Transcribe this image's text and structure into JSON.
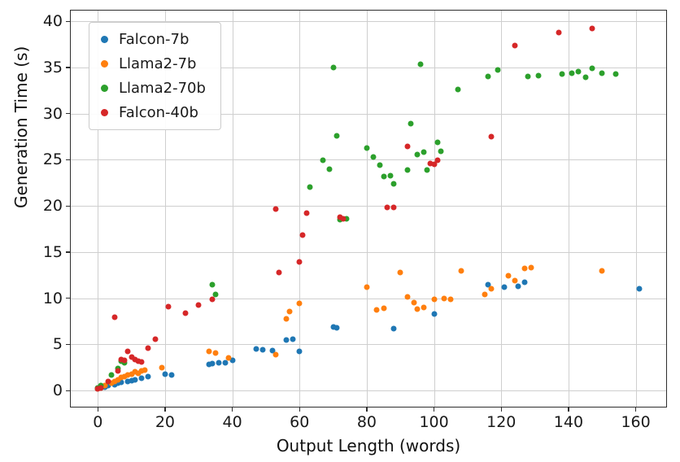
{
  "axes": {
    "xlabel": "Output Length (words)",
    "ylabel": "Generation Time (s)"
  },
  "chart_data": {
    "type": "scatter",
    "title": "",
    "xlabel": "Output Length (words)",
    "ylabel": "Generation Time (s)",
    "xlim": [
      -8.05,
      169.05
    ],
    "ylim": [
      -1.75,
      41.15
    ],
    "xticks": [
      0,
      20,
      40,
      60,
      80,
      100,
      120,
      140,
      160
    ],
    "yticks": [
      0,
      5,
      10,
      15,
      20,
      25,
      30,
      35,
      40
    ],
    "grid": true,
    "legend_position": "upper-left",
    "series": [
      {
        "name": "Falcon-7b",
        "color": "#1f77b4",
        "points": [
          [
            0,
            0.15
          ],
          [
            1,
            0.3
          ],
          [
            2,
            0.4
          ],
          [
            3,
            0.5
          ],
          [
            5,
            0.6
          ],
          [
            6,
            0.8
          ],
          [
            7,
            0.9
          ],
          [
            9,
            1.0
          ],
          [
            10,
            1.1
          ],
          [
            11,
            1.2
          ],
          [
            13,
            1.3
          ],
          [
            15,
            1.5
          ],
          [
            20,
            1.8
          ],
          [
            22,
            1.7
          ],
          [
            33,
            2.8
          ],
          [
            34,
            2.9
          ],
          [
            36,
            3.0
          ],
          [
            38,
            3.0
          ],
          [
            40,
            3.3
          ],
          [
            47,
            4.5
          ],
          [
            49,
            4.4
          ],
          [
            52,
            4.3
          ],
          [
            56,
            5.5
          ],
          [
            58,
            5.6
          ],
          [
            60,
            4.2
          ],
          [
            70,
            6.9
          ],
          [
            71,
            6.8
          ],
          [
            88,
            6.7
          ],
          [
            100,
            8.3
          ],
          [
            116,
            11.5
          ],
          [
            121,
            11.2
          ],
          [
            125,
            11.3
          ],
          [
            127,
            11.7
          ],
          [
            161,
            11.0
          ]
        ]
      },
      {
        "name": "Llama2-7b",
        "color": "#ff7f0e",
        "points": [
          [
            0,
            0.2
          ],
          [
            1,
            0.3
          ],
          [
            2,
            0.5
          ],
          [
            4,
            0.8
          ],
          [
            5,
            1.0
          ],
          [
            6,
            1.2
          ],
          [
            7,
            1.4
          ],
          [
            8,
            1.5
          ],
          [
            9,
            1.7
          ],
          [
            10,
            1.8
          ],
          [
            11,
            2.0
          ],
          [
            12,
            1.9
          ],
          [
            13,
            2.1
          ],
          [
            14,
            2.2
          ],
          [
            19,
            2.5
          ],
          [
            33,
            4.2
          ],
          [
            35,
            4.1
          ],
          [
            39,
            3.5
          ],
          [
            53,
            3.9
          ],
          [
            56,
            7.8
          ],
          [
            57,
            8.6
          ],
          [
            60,
            9.4
          ],
          [
            80,
            11.2
          ],
          [
            83,
            8.7
          ],
          [
            85,
            8.9
          ],
          [
            90,
            12.8
          ],
          [
            92,
            10.1
          ],
          [
            94,
            9.5
          ],
          [
            95,
            8.8
          ],
          [
            97,
            9.0
          ],
          [
            100,
            9.9
          ],
          [
            103,
            10.0
          ],
          [
            105,
            9.9
          ],
          [
            108,
            13.0
          ],
          [
            115,
            10.4
          ],
          [
            117,
            11.0
          ],
          [
            122,
            12.4
          ],
          [
            124,
            11.9
          ],
          [
            127,
            13.2
          ],
          [
            129,
            13.3
          ],
          [
            150,
            13.0
          ]
        ]
      },
      {
        "name": "Llama2-70b",
        "color": "#2ca02c",
        "points": [
          [
            0,
            0.3
          ],
          [
            1,
            0.5
          ],
          [
            4,
            1.7
          ],
          [
            6,
            2.4
          ],
          [
            7,
            3.2
          ],
          [
            8,
            3.0
          ],
          [
            34,
            11.5
          ],
          [
            35,
            10.4
          ],
          [
            63,
            22.0
          ],
          [
            67,
            24.9
          ],
          [
            69,
            24.0
          ],
          [
            70,
            35.0
          ],
          [
            71,
            27.6
          ],
          [
            72,
            18.5
          ],
          [
            74,
            18.6
          ],
          [
            80,
            26.3
          ],
          [
            82,
            25.3
          ],
          [
            84,
            24.4
          ],
          [
            85,
            23.2
          ],
          [
            87,
            23.3
          ],
          [
            88,
            22.4
          ],
          [
            92,
            23.9
          ],
          [
            93,
            28.9
          ],
          [
            95,
            25.6
          ],
          [
            96,
            35.3
          ],
          [
            97,
            25.8
          ],
          [
            98,
            23.9
          ],
          [
            101,
            26.9
          ],
          [
            102,
            25.9
          ],
          [
            107,
            32.6
          ],
          [
            116,
            34.0
          ],
          [
            119,
            34.7
          ],
          [
            128,
            34.0
          ],
          [
            131,
            34.1
          ],
          [
            138,
            34.3
          ],
          [
            141,
            34.4
          ],
          [
            143,
            34.5
          ],
          [
            145,
            33.9
          ],
          [
            147,
            34.9
          ],
          [
            150,
            34.4
          ],
          [
            154,
            34.3
          ]
        ]
      },
      {
        "name": "Falcon-40b",
        "color": "#d62728",
        "points": [
          [
            0,
            0.2
          ],
          [
            1,
            0.3
          ],
          [
            3,
            1.0
          ],
          [
            5,
            7.9
          ],
          [
            6,
            2.1
          ],
          [
            7,
            3.4
          ],
          [
            8,
            3.3
          ],
          [
            9,
            4.2
          ],
          [
            10,
            3.6
          ],
          [
            11,
            3.4
          ],
          [
            12,
            3.2
          ],
          [
            13,
            3.1
          ],
          [
            15,
            4.6
          ],
          [
            17,
            5.6
          ],
          [
            21,
            9.1
          ],
          [
            26,
            8.4
          ],
          [
            30,
            9.3
          ],
          [
            34,
            9.9
          ],
          [
            53,
            19.7
          ],
          [
            54,
            12.8
          ],
          [
            60,
            13.9
          ],
          [
            61,
            16.8
          ],
          [
            62,
            19.2
          ],
          [
            72,
            18.8
          ],
          [
            73,
            18.6
          ],
          [
            86,
            19.8
          ],
          [
            88,
            19.8
          ],
          [
            92,
            26.4
          ],
          [
            99,
            24.6
          ],
          [
            100,
            24.5
          ],
          [
            101,
            24.9
          ],
          [
            117,
            27.5
          ],
          [
            124,
            37.4
          ],
          [
            137,
            38.8
          ],
          [
            147,
            39.2
          ]
        ]
      }
    ]
  }
}
